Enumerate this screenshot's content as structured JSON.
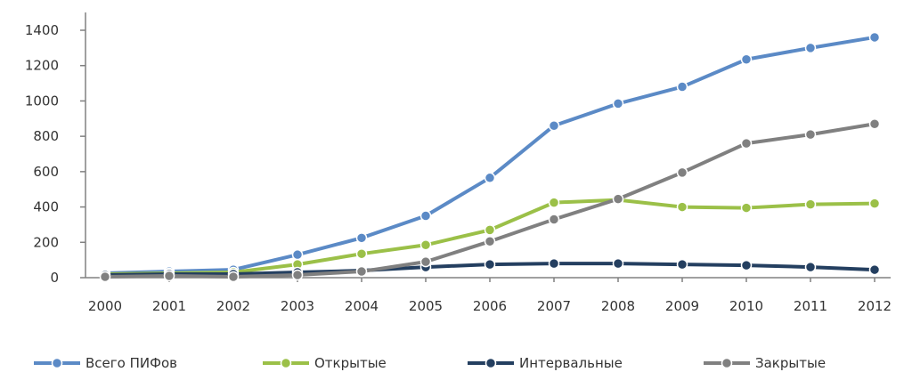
{
  "chart_data": {
    "type": "line",
    "title": "",
    "xlabel": "",
    "ylabel": "",
    "ylim": [
      0,
      1400
    ],
    "yticks": [
      0,
      200,
      400,
      600,
      800,
      1000,
      1200,
      1400
    ],
    "grid": false,
    "legend_position": "bottom",
    "categories": [
      "2000",
      "2001",
      "2002",
      "2003",
      "2004",
      "2005",
      "2006",
      "2007",
      "2008",
      "2009",
      "2010",
      "2011",
      "2012"
    ],
    "series": [
      {
        "name": "Всего ПИФов",
        "color": "#5b8ac6",
        "values": [
          25,
          35,
          45,
          130,
          225,
          350,
          565,
          860,
          985,
          1080,
          1235,
          1300,
          1360
        ]
      },
      {
        "name": "Открытые",
        "color": "#9bc048",
        "values": [
          20,
          25,
          30,
          75,
          135,
          185,
          270,
          425,
          440,
          400,
          395,
          415,
          420
        ]
      },
      {
        "name": "Интервальные",
        "color": "#243f60",
        "values": [
          15,
          20,
          20,
          30,
          40,
          60,
          75,
          80,
          80,
          75,
          70,
          60,
          45
        ]
      },
      {
        "name": "Закрытые",
        "color": "#808080",
        "values": [
          5,
          10,
          5,
          15,
          35,
          90,
          205,
          330,
          445,
          595,
          760,
          810,
          870
        ]
      }
    ]
  }
}
